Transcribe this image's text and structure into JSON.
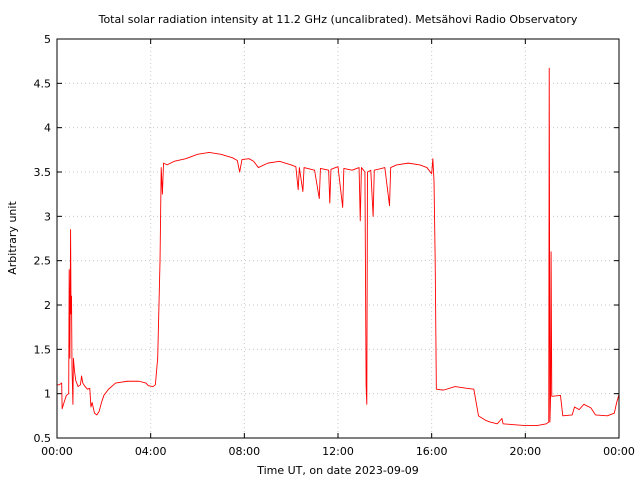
{
  "chart_data": {
    "type": "line",
    "title": "Total solar radiation intensity at 11.2 GHz (uncalibrated). Metsähovi Radio Observatory",
    "xlabel": "Time UT, on date 2023-09-09",
    "ylabel": "Arbitrary unit",
    "xlim": [
      0,
      24
    ],
    "ylim": [
      0.5,
      5
    ],
    "grid": true,
    "x_ticks": [
      0,
      4,
      8,
      12,
      16,
      20,
      24
    ],
    "x_tick_labels": [
      "00:00",
      "04:00",
      "08:00",
      "12:00",
      "16:00",
      "20:00",
      "00:00"
    ],
    "y_ticks": [
      0.5,
      1,
      1.5,
      2,
      2.5,
      3,
      3.5,
      4,
      4.5,
      5
    ],
    "y_tick_labels": [
      "0.5",
      "1",
      "1.5",
      "2",
      "2.5",
      "3",
      "3.5",
      "4",
      "4.5",
      "5"
    ],
    "series": [
      {
        "color": "#ff0000",
        "points": [
          [
            0.0,
            1.1
          ],
          [
            0.1,
            1.1
          ],
          [
            0.2,
            1.12
          ],
          [
            0.22,
            0.83
          ],
          [
            0.3,
            0.9
          ],
          [
            0.4,
            0.98
          ],
          [
            0.5,
            1.0
          ],
          [
            0.52,
            2.4
          ],
          [
            0.55,
            1.4
          ],
          [
            0.58,
            2.85
          ],
          [
            0.6,
            1.9
          ],
          [
            0.62,
            2.1
          ],
          [
            0.64,
            1.3
          ],
          [
            0.68,
            0.88
          ],
          [
            0.7,
            1.4
          ],
          [
            0.75,
            1.25
          ],
          [
            0.8,
            1.15
          ],
          [
            0.9,
            1.08
          ],
          [
            1.0,
            1.1
          ],
          [
            1.05,
            1.2
          ],
          [
            1.1,
            1.12
          ],
          [
            1.2,
            1.08
          ],
          [
            1.3,
            1.05
          ],
          [
            1.4,
            1.06
          ],
          [
            1.45,
            0.85
          ],
          [
            1.5,
            0.9
          ],
          [
            1.6,
            0.78
          ],
          [
            1.7,
            0.76
          ],
          [
            1.8,
            0.8
          ],
          [
            1.9,
            0.9
          ],
          [
            2.0,
            0.98
          ],
          [
            2.2,
            1.05
          ],
          [
            2.5,
            1.12
          ],
          [
            3.0,
            1.14
          ],
          [
            3.5,
            1.14
          ],
          [
            3.8,
            1.12
          ],
          [
            3.9,
            1.09
          ],
          [
            4.1,
            1.08
          ],
          [
            4.2,
            1.1
          ],
          [
            4.3,
            1.4
          ],
          [
            4.4,
            2.5
          ],
          [
            4.45,
            3.55
          ],
          [
            4.5,
            3.25
          ],
          [
            4.55,
            3.6
          ],
          [
            4.7,
            3.58
          ],
          [
            5.0,
            3.62
          ],
          [
            5.5,
            3.65
          ],
          [
            6.0,
            3.7
          ],
          [
            6.5,
            3.72
          ],
          [
            7.0,
            3.7
          ],
          [
            7.5,
            3.66
          ],
          [
            7.7,
            3.63
          ],
          [
            7.8,
            3.5
          ],
          [
            7.9,
            3.64
          ],
          [
            8.2,
            3.65
          ],
          [
            8.4,
            3.62
          ],
          [
            8.6,
            3.55
          ],
          [
            9.0,
            3.6
          ],
          [
            9.5,
            3.62
          ],
          [
            10.0,
            3.58
          ],
          [
            10.2,
            3.56
          ],
          [
            10.3,
            3.3
          ],
          [
            10.35,
            3.55
          ],
          [
            10.5,
            3.28
          ],
          [
            10.55,
            3.55
          ],
          [
            11.0,
            3.52
          ],
          [
            11.2,
            3.2
          ],
          [
            11.25,
            3.54
          ],
          [
            11.6,
            3.52
          ],
          [
            11.65,
            3.15
          ],
          [
            11.7,
            3.53
          ],
          [
            12.0,
            3.56
          ],
          [
            12.2,
            3.1
          ],
          [
            12.25,
            3.54
          ],
          [
            12.6,
            3.52
          ],
          [
            12.9,
            3.55
          ],
          [
            12.95,
            2.95
          ],
          [
            13.0,
            3.55
          ],
          [
            13.15,
            3.5
          ],
          [
            13.2,
            1.1
          ],
          [
            13.23,
            0.88
          ],
          [
            13.26,
            3.5
          ],
          [
            13.4,
            3.52
          ],
          [
            13.5,
            3.0
          ],
          [
            13.55,
            3.52
          ],
          [
            14.0,
            3.55
          ],
          [
            14.2,
            3.12
          ],
          [
            14.25,
            3.55
          ],
          [
            14.5,
            3.58
          ],
          [
            15.0,
            3.6
          ],
          [
            15.5,
            3.58
          ],
          [
            15.8,
            3.55
          ],
          [
            16.0,
            3.48
          ],
          [
            16.05,
            3.65
          ],
          [
            16.1,
            3.4
          ],
          [
            16.15,
            2.5
          ],
          [
            16.2,
            1.05
          ],
          [
            16.5,
            1.04
          ],
          [
            17.0,
            1.08
          ],
          [
            17.5,
            1.06
          ],
          [
            17.8,
            1.05
          ],
          [
            18.0,
            0.75
          ],
          [
            18.3,
            0.7
          ],
          [
            18.5,
            0.68
          ],
          [
            18.8,
            0.66
          ],
          [
            19.0,
            0.72
          ],
          [
            19.05,
            0.66
          ],
          [
            19.5,
            0.65
          ],
          [
            20.0,
            0.64
          ],
          [
            20.5,
            0.64
          ],
          [
            20.9,
            0.66
          ],
          [
            21.0,
            0.68
          ],
          [
            21.02,
            4.67
          ],
          [
            21.05,
            0.68
          ],
          [
            21.08,
            0.98
          ],
          [
            21.1,
            2.6
          ],
          [
            21.13,
            0.97
          ],
          [
            21.5,
            0.98
          ],
          [
            21.6,
            0.75
          ],
          [
            22.0,
            0.76
          ],
          [
            22.1,
            0.85
          ],
          [
            22.3,
            0.82
          ],
          [
            22.5,
            0.88
          ],
          [
            22.8,
            0.84
          ],
          [
            23.0,
            0.76
          ],
          [
            23.5,
            0.75
          ],
          [
            23.8,
            0.78
          ],
          [
            23.9,
            0.9
          ],
          [
            24.0,
            0.99
          ]
        ]
      }
    ]
  }
}
